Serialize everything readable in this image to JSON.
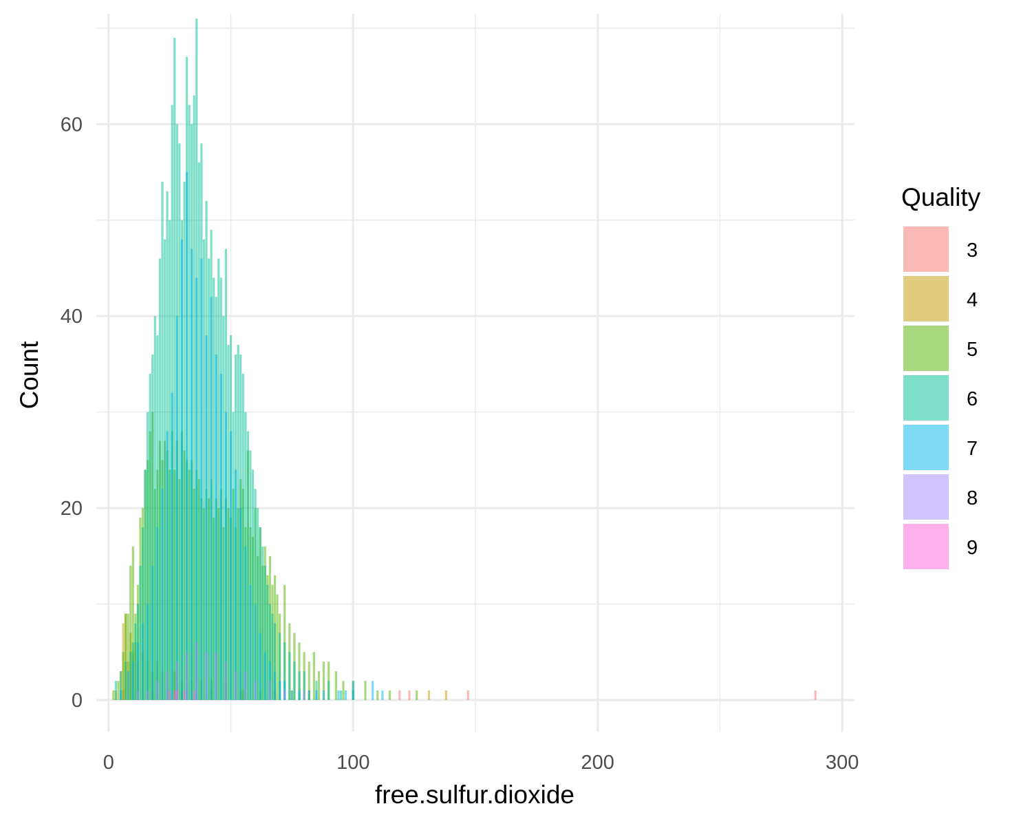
{
  "chart_data": {
    "type": "bar",
    "title": "",
    "xlabel": "free.sulfur.dioxide",
    "ylabel": "Count",
    "xlim": [
      -5,
      305
    ],
    "ylim": [
      -3.3,
      71.5
    ],
    "x_ticks": [
      0,
      100,
      200,
      300
    ],
    "x_minor_ticks": [
      50,
      150,
      250
    ],
    "y_ticks": [
      0,
      20,
      40,
      60
    ],
    "y_minor_ticks": [
      10,
      30,
      50,
      70
    ],
    "grid": true,
    "legend": {
      "title": "Quality",
      "placement": "right",
      "entries": [
        "3",
        "4",
        "5",
        "6",
        "7",
        "8",
        "9"
      ]
    },
    "series": [
      {
        "name": "3",
        "color": "#F8766D",
        "x": [
          6,
          18,
          30,
          42,
          54,
          119,
          123,
          147,
          289
        ],
        "values": [
          1,
          1,
          1,
          1,
          1,
          1,
          1,
          1,
          1
        ]
      },
      {
        "name": "4",
        "color": "#C49A00",
        "x": [
          3,
          5,
          6,
          7,
          8,
          9,
          10,
          11,
          12,
          14,
          16,
          18,
          20,
          22,
          24,
          27,
          30,
          34,
          38,
          42,
          48,
          55,
          62,
          68,
          75,
          82,
          131,
          138
        ],
        "values": [
          1,
          3,
          8,
          9,
          4,
          7,
          5,
          6,
          4,
          5,
          4,
          3,
          4,
          3,
          3,
          3,
          2,
          2,
          2,
          2,
          2,
          1,
          1,
          1,
          1,
          1,
          1,
          1
        ]
      },
      {
        "name": "5",
        "color": "#53B400",
        "x": [
          2,
          4,
          6,
          7,
          8,
          9,
          10,
          11,
          12,
          13,
          14,
          15,
          16,
          17,
          18,
          19,
          20,
          21,
          22,
          23,
          24,
          25,
          26,
          27,
          28,
          29,
          30,
          31,
          32,
          33,
          34,
          35,
          36,
          37,
          38,
          39,
          40,
          41,
          42,
          43,
          44,
          45,
          46,
          47,
          48,
          49,
          50,
          51,
          52,
          53,
          54,
          55,
          56,
          57,
          58,
          59,
          60,
          61,
          62,
          63,
          64,
          65,
          66,
          67,
          68,
          69,
          70,
          72,
          74,
          76,
          78,
          80,
          82,
          84,
          86,
          88,
          90,
          93,
          96,
          100,
          105,
          110,
          115,
          126
        ],
        "values": [
          1,
          2,
          5,
          9,
          9,
          14,
          16,
          9,
          12,
          19,
          20,
          24,
          25,
          28,
          30,
          22,
          24,
          27,
          25,
          27,
          26,
          24,
          28,
          24,
          27,
          23,
          28,
          26,
          25,
          24,
          25,
          22,
          24,
          23,
          21,
          20,
          22,
          21,
          23,
          19,
          21,
          20,
          22,
          18,
          21,
          20,
          19,
          22,
          18,
          20,
          23,
          22,
          18,
          26,
          18,
          17,
          20,
          15,
          18,
          14,
          16,
          13,
          15,
          12,
          13,
          11,
          9,
          12,
          8,
          7,
          6,
          5,
          4,
          5,
          3,
          4,
          4,
          3,
          2,
          2,
          2,
          1,
          1,
          1
        ]
      },
      {
        "name": "6",
        "color": "#00C094",
        "x": [
          3,
          5,
          7,
          9,
          10,
          11,
          12,
          13,
          14,
          15,
          16,
          17,
          18,
          19,
          20,
          21,
          22,
          23,
          24,
          25,
          26,
          27,
          28,
          29,
          30,
          31,
          32,
          33,
          34,
          35,
          36,
          37,
          38,
          39,
          40,
          41,
          42,
          43,
          44,
          45,
          46,
          47,
          48,
          49,
          50,
          51,
          52,
          53,
          54,
          55,
          56,
          57,
          58,
          59,
          60,
          61,
          62,
          63,
          64,
          65,
          66,
          67,
          68,
          70,
          72,
          74,
          76,
          78,
          80,
          85,
          90,
          95,
          100
        ],
        "values": [
          2,
          3,
          4,
          5,
          6,
          8,
          10,
          14,
          18,
          24,
          30,
          34,
          36,
          40,
          38,
          46,
          54,
          48,
          53,
          50,
          62,
          69,
          60,
          58,
          50,
          54,
          67,
          62,
          60,
          63,
          71,
          56,
          58,
          48,
          52,
          46,
          49,
          44,
          42,
          46,
          44,
          40,
          47,
          37,
          38,
          30,
          36,
          37,
          36,
          34,
          30,
          28,
          26,
          24,
          22,
          20,
          18,
          16,
          14,
          12,
          10,
          9,
          8,
          7,
          6,
          5,
          4,
          3,
          3,
          2,
          2,
          1,
          1
        ]
      },
      {
        "name": "7",
        "color": "#00B6EB",
        "x": [
          5,
          8,
          10,
          12,
          14,
          16,
          18,
          20,
          22,
          24,
          26,
          28,
          30,
          32,
          34,
          36,
          38,
          40,
          42,
          44,
          46,
          48,
          50,
          52,
          54,
          56,
          58,
          60,
          62,
          64,
          66,
          68,
          70,
          72,
          75,
          78,
          82,
          85,
          88,
          94,
          97,
          100,
          108,
          112
        ],
        "values": [
          1,
          3,
          4,
          6,
          8,
          10,
          14,
          18,
          22,
          28,
          32,
          40,
          48,
          55,
          47,
          44,
          46,
          38,
          42,
          36,
          34,
          30,
          28,
          24,
          20,
          16,
          12,
          10,
          7,
          5,
          4,
          3,
          2,
          2,
          1,
          1,
          1,
          1,
          1,
          1,
          1,
          2,
          2,
          1
        ]
      },
      {
        "name": "8",
        "color": "#A58AFF",
        "x": [
          12,
          16,
          20,
          24,
          28,
          32,
          36,
          40,
          44,
          48,
          52,
          56,
          60,
          66,
          72,
          80
        ],
        "values": [
          1,
          1,
          2,
          3,
          4,
          5,
          6,
          5,
          5,
          4,
          3,
          3,
          2,
          2,
          1,
          1
        ]
      },
      {
        "name": "9",
        "color": "#FB61D7",
        "x": [
          25,
          27,
          28,
          31,
          35
        ],
        "values": [
          1,
          1,
          1,
          1,
          1
        ]
      }
    ]
  }
}
